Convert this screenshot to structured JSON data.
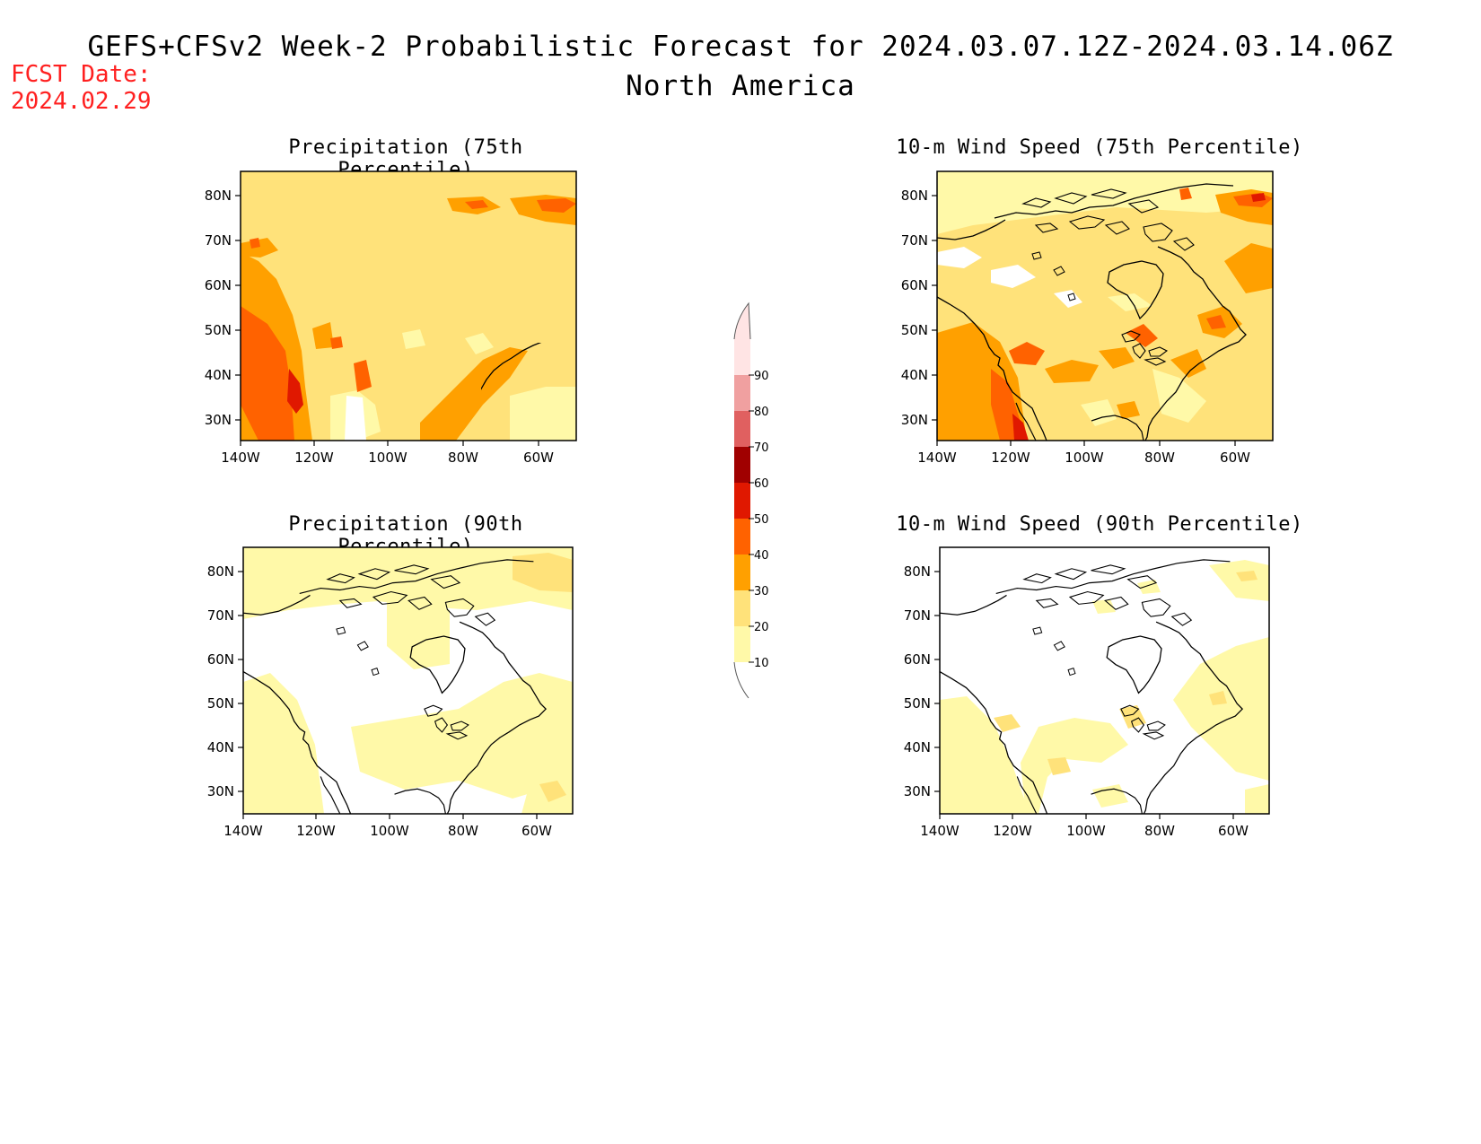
{
  "header": {
    "title_line1": "GEFS+CFSv2 Week-2 Probabilistic Forecast for 2024.03.07.12Z-2024.03.14.06Z",
    "title_line2": "North America",
    "fcst_label": "FCST Date:",
    "fcst_date": "2024.02.29"
  },
  "axes": {
    "lat_labels": [
      "80N",
      "70N",
      "60N",
      "50N",
      "40N",
      "30N"
    ],
    "lon_labels": [
      "140W",
      "120W",
      "100W",
      "80W",
      "60W"
    ]
  },
  "colorbar": {
    "levels": [
      "10",
      "20",
      "30",
      "40",
      "50",
      "60",
      "70",
      "80",
      "90"
    ],
    "colors": [
      "#fff9a8",
      "#ffe27a",
      "#ffa000",
      "#ff6200",
      "#e01800",
      "#a00000",
      "#e06060",
      "#f0a0a0",
      "#ffe4e4"
    ]
  },
  "panels": [
    {
      "id": "precip75",
      "title": "Precipitation (75th Percentile)"
    },
    {
      "id": "wind75",
      "title": "10-m Wind Speed (75th Percentile)"
    },
    {
      "id": "precip90",
      "title": "Precipitation (90th Percentile)"
    },
    {
      "id": "wind90",
      "title": "10-m Wind Speed (90th Percentile)"
    }
  ]
}
